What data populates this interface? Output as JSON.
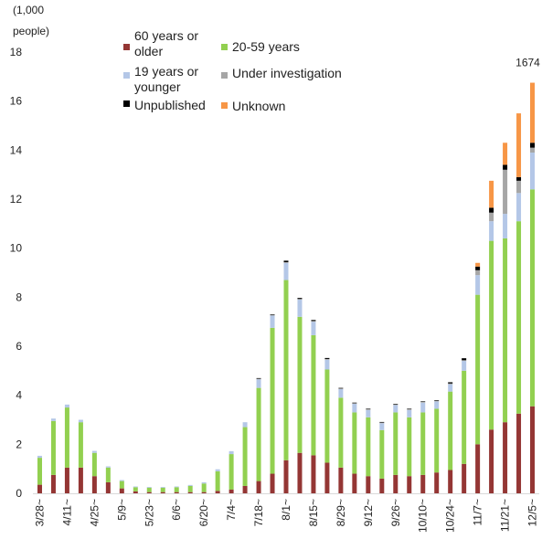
{
  "chart_data": {
    "type": "bar",
    "stacked": true,
    "unit_label": [
      "(1,000",
      "people)"
    ],
    "ylim": [
      0,
      18
    ],
    "yticks": [
      0,
      2,
      4,
      6,
      8,
      10,
      12,
      14,
      16,
      18
    ],
    "grid": false,
    "legend_position": "top",
    "x": [
      "3/28~",
      "4/4~",
      "4/11~",
      "4/18~",
      "4/25~",
      "5/2~",
      "5/9~",
      "5/16~",
      "5/23~",
      "5/30~",
      "6/6~",
      "6/13~",
      "6/20~",
      "6/27~",
      "7/4~",
      "7/11~",
      "7/18~",
      "7/25~",
      "8/1~",
      "8/8~",
      "8/15~",
      "8/22~",
      "8/29~",
      "9/5~",
      "9/12~",
      "9/19~",
      "9/26~",
      "10/3~",
      "10/10~",
      "10/17~",
      "10/24~",
      "10/31~",
      "11/7~",
      "11/14~",
      "11/21~",
      "11/28~",
      "12/5~"
    ],
    "x_tick_labels_shown": [
      "3/28~",
      "4/11~",
      "4/25~",
      "5/9~",
      "5/23~",
      "6/6~",
      "6/20~",
      "7/4~",
      "7/18~",
      "8/1~",
      "8/15~",
      "8/29~",
      "9/12~",
      "9/26~",
      "10/10~",
      "10/24~",
      "11/7~",
      "11/21~",
      "12/5~"
    ],
    "series": [
      {
        "name": "60 years or older",
        "color": "#943634",
        "values": [
          0.35,
          0.75,
          1.05,
          1.05,
          0.7,
          0.45,
          0.2,
          0.08,
          0.05,
          0.05,
          0.05,
          0.05,
          0.05,
          0.1,
          0.15,
          0.3,
          0.5,
          0.8,
          1.35,
          1.65,
          1.55,
          1.25,
          1.05,
          0.8,
          0.7,
          0.6,
          0.75,
          0.7,
          0.75,
          0.85,
          0.95,
          1.2,
          2.0,
          2.6,
          2.9,
          3.25,
          3.55
        ]
      },
      {
        "name": "20-59 years",
        "color": "#92D050",
        "values": [
          1.1,
          2.2,
          2.45,
          1.85,
          0.95,
          0.6,
          0.3,
          0.17,
          0.18,
          0.18,
          0.2,
          0.25,
          0.35,
          0.8,
          1.45,
          2.4,
          3.8,
          5.95,
          7.35,
          5.55,
          4.9,
          3.8,
          2.85,
          2.5,
          2.4,
          1.98,
          2.55,
          2.4,
          2.55,
          2.6,
          3.2,
          3.8,
          6.1,
          7.7,
          7.5,
          7.85,
          8.85
        ]
      },
      {
        "name": "19 years or younger",
        "color": "#B4C7E7",
        "values": [
          0.08,
          0.1,
          0.12,
          0.1,
          0.08,
          0.05,
          0.04,
          0.03,
          0.03,
          0.03,
          0.03,
          0.04,
          0.05,
          0.08,
          0.12,
          0.2,
          0.35,
          0.5,
          0.7,
          0.7,
          0.55,
          0.4,
          0.35,
          0.35,
          0.3,
          0.28,
          0.3,
          0.3,
          0.4,
          0.3,
          0.3,
          0.4,
          0.8,
          0.8,
          1.0,
          1.15,
          1.5
        ]
      },
      {
        "name": "Under investigation",
        "color": "#A6A6A6",
        "values": [
          0,
          0,
          0,
          0,
          0,
          0,
          0,
          0,
          0,
          0,
          0,
          0,
          0,
          0,
          0,
          0,
          0.03,
          0.03,
          0.03,
          0.03,
          0.03,
          0.03,
          0.03,
          0.03,
          0.03,
          0.03,
          0.03,
          0.03,
          0.03,
          0.03,
          0.03,
          0.03,
          0.2,
          0.35,
          1.8,
          0.5,
          0.2
        ]
      },
      {
        "name": "Unpublished",
        "color": "#000000",
        "values": [
          0,
          0,
          0,
          0,
          0,
          0,
          0,
          0,
          0,
          0,
          0,
          0,
          0,
          0,
          0,
          0,
          0.02,
          0.02,
          0.06,
          0.04,
          0.04,
          0.04,
          0.02,
          0.02,
          0.02,
          0.02,
          0.02,
          0.02,
          0.02,
          0.02,
          0.05,
          0.08,
          0.15,
          0.2,
          0.2,
          0.15,
          0.2
        ]
      },
      {
        "name": "Unknown",
        "color": "#F79646",
        "values": [
          0,
          0,
          0,
          0,
          0,
          0,
          0,
          0,
          0,
          0,
          0,
          0,
          0,
          0,
          0,
          0,
          0,
          0,
          0,
          0,
          0,
          0,
          0,
          0,
          0,
          0,
          0,
          0,
          0,
          0,
          0,
          0,
          0.15,
          1.1,
          0.9,
          2.6,
          2.45
        ]
      }
    ],
    "data_labels": [
      {
        "x": "12/5~",
        "text": "1674"
      }
    ]
  }
}
